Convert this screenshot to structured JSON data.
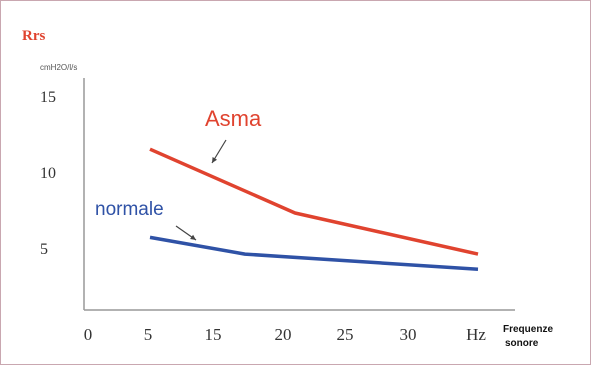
{
  "chart_data": {
    "type": "line",
    "title": "Rrs",
    "unit_label": "cmH2O/l/s",
    "xlabel_unit": "Hz",
    "xlabel": "Frequenze sonore",
    "xlabel_lines": [
      "Frequenze",
      "sonore"
    ],
    "x_ticks": [
      "0",
      "5",
      "15",
      "20",
      "25",
      "30"
    ],
    "y_ticks": [
      "5",
      "10",
      "15"
    ],
    "ylim": [
      2,
      15
    ],
    "grid": false,
    "series": [
      {
        "name": "Asma",
        "color": "#e0432f",
        "points": [
          [
            5,
            11.5
          ],
          [
            20,
            7.3
          ],
          [
            35,
            4.6
          ]
        ]
      },
      {
        "name": "normale",
        "color": "#2f52a6",
        "points": [
          [
            5,
            5.7
          ],
          [
            15,
            4.6
          ],
          [
            35,
            3.6
          ]
        ]
      }
    ]
  }
}
